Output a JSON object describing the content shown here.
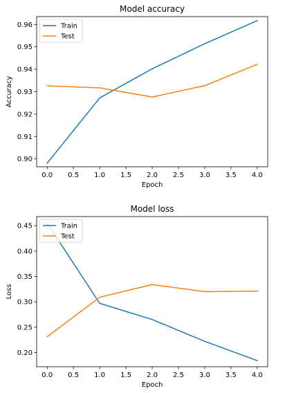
{
  "chart_data": [
    {
      "type": "line",
      "title": "Model accuracy",
      "xlabel": "Epoch",
      "ylabel": "Accuracy",
      "x": [
        0,
        1,
        2,
        3,
        4
      ],
      "xlim": [
        -0.2,
        4.2
      ],
      "ylim": [
        0.8965,
        0.9635
      ],
      "xticks": [
        0.0,
        0.5,
        1.0,
        1.5,
        2.0,
        2.5,
        3.0,
        3.5,
        4.0
      ],
      "xtick_labels": [
        "0.0",
        "0.5",
        "1.0",
        "1.5",
        "2.0",
        "2.5",
        "3.0",
        "3.5",
        "4.0"
      ],
      "yticks": [
        0.9,
        0.91,
        0.92,
        0.93,
        0.94,
        0.95,
        0.96
      ],
      "ytick_labels": [
        "0.90",
        "0.91",
        "0.92",
        "0.93",
        "0.94",
        "0.95",
        "0.96"
      ],
      "legend": "top-left",
      "grid": false,
      "series": [
        {
          "name": "Train",
          "color": "#1f77b4",
          "values": [
            0.8981,
            0.9272,
            0.9402,
            0.9514,
            0.9617
          ]
        },
        {
          "name": "Test",
          "color": "#ff7f0e",
          "values": [
            0.9326,
            0.9317,
            0.9276,
            0.9327,
            0.9422
          ]
        }
      ]
    },
    {
      "type": "line",
      "title": "Model loss",
      "xlabel": "Epoch",
      "ylabel": "Loss",
      "x": [
        0,
        1,
        2,
        3,
        4
      ],
      "xlim": [
        -0.2,
        4.2
      ],
      "ylim": [
        0.172,
        0.468
      ],
      "xticks": [
        0.0,
        0.5,
        1.0,
        1.5,
        2.0,
        2.5,
        3.0,
        3.5,
        4.0
      ],
      "xtick_labels": [
        "0.0",
        "0.5",
        "1.0",
        "1.5",
        "2.0",
        "2.5",
        "3.0",
        "3.5",
        "4.0"
      ],
      "yticks": [
        0.2,
        0.25,
        0.3,
        0.35,
        0.4,
        0.45
      ],
      "ytick_labels": [
        "0.20",
        "0.25",
        "0.30",
        "0.35",
        "0.40",
        "0.45"
      ],
      "legend": "top-left",
      "grid": false,
      "series": [
        {
          "name": "Train",
          "color": "#1f77b4",
          "values": [
            0.455,
            0.297,
            0.265,
            0.222,
            0.184
          ]
        },
        {
          "name": "Test",
          "color": "#ff7f0e",
          "values": [
            0.231,
            0.309,
            0.334,
            0.32,
            0.321
          ]
        }
      ]
    }
  ]
}
